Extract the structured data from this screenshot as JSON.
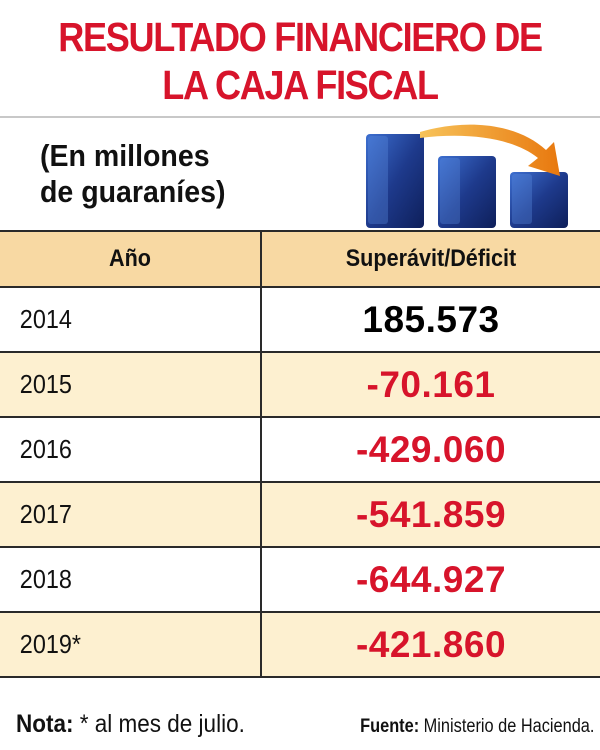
{
  "title": {
    "line1": "RESULTADO FINANCIERO DE",
    "line2": "LA CAJA FISCAL"
  },
  "subtitle": {
    "line1": "(En millones",
    "line2": "de guaraníes)"
  },
  "colors": {
    "title": "#d7142b",
    "negative": "#d7142b",
    "positive": "#000000",
    "header_bg": "#f8d9a3",
    "row_alt_bg": "#fdf0d0",
    "deco_bar": "#1e3a8c",
    "deco_arrow": "#f29a1e"
  },
  "icons": {
    "decoration": "declining-bars-arrow-icon"
  },
  "chart_data": {
    "type": "table",
    "columns": [
      "Año",
      "Superávit/Déficit"
    ],
    "rows": [
      {
        "year": "2014",
        "value_text": "185.573",
        "value": 185573
      },
      {
        "year": "2015",
        "value_text": "-70.161",
        "value": -70161
      },
      {
        "year": "2016",
        "value_text": "-429.060",
        "value": -429060
      },
      {
        "year": "2017",
        "value_text": "-541.859",
        "value": -541859
      },
      {
        "year": "2018",
        "value_text": "-644.927",
        "value": -644927
      },
      {
        "year": "2019*",
        "value_text": "-421.860",
        "value": -421860
      }
    ]
  },
  "footer": {
    "note_label": "Nota:",
    "note_text": " * al mes de julio.",
    "source_label": "Fuente:",
    "source_text": " Ministerio de Hacienda."
  }
}
